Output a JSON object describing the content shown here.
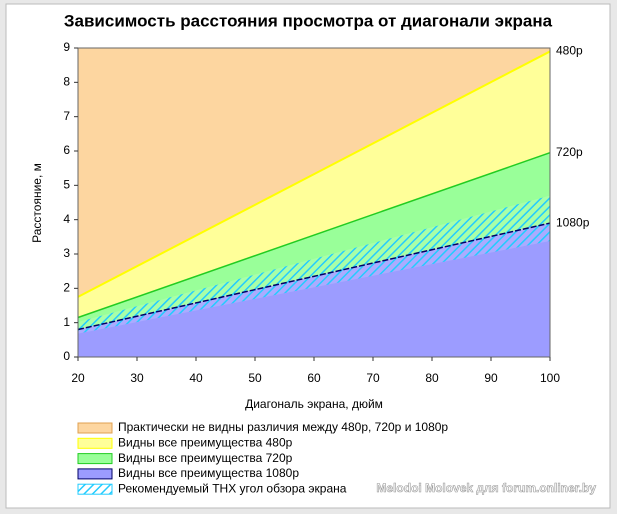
{
  "chart_data": {
    "type": "area",
    "title": "Зависимость расстояния просмотра от диагонали экрана",
    "xlabel": "Диагональ экрана, дюйм",
    "ylabel": "Расстояние, м",
    "x": [
      20,
      100
    ],
    "xlim": [
      20,
      100
    ],
    "xticks": [
      20,
      30,
      40,
      50,
      60,
      70,
      80,
      90,
      100
    ],
    "ylim": [
      0,
      9
    ],
    "yticks": [
      0,
      1,
      2,
      3,
      4,
      5,
      6,
      7,
      8,
      9
    ],
    "top_region": {
      "name": "Практически не видны различия между 480p, 720p и 1080p",
      "color": "#fdd6a0"
    },
    "series": [
      {
        "name": "Видны все преимущества 480p",
        "end_label": "480p",
        "color": "#ffff99",
        "line_color": "#ffff00",
        "values": [
          1.75,
          8.9
        ]
      },
      {
        "name": "Видны все преимущества 720p",
        "end_label": "720p",
        "color": "#99ff99",
        "line_color": "#22cc22",
        "values": [
          1.15,
          5.95
        ]
      },
      {
        "name": "Видны все преимущества 1080p",
        "end_label": "1080p",
        "color": "#9c9cff",
        "line_color": "#000066",
        "values": [
          0.8,
          3.9
        ]
      }
    ],
    "band": {
      "name": "Рекомендуемый THX угол обзора экрана",
      "color": "#22ccff",
      "lower": [
        0.68,
        3.38
      ],
      "upper": [
        1.02,
        4.7
      ]
    },
    "watermark": "Melodoi Molovek для forum.onliner.by"
  }
}
